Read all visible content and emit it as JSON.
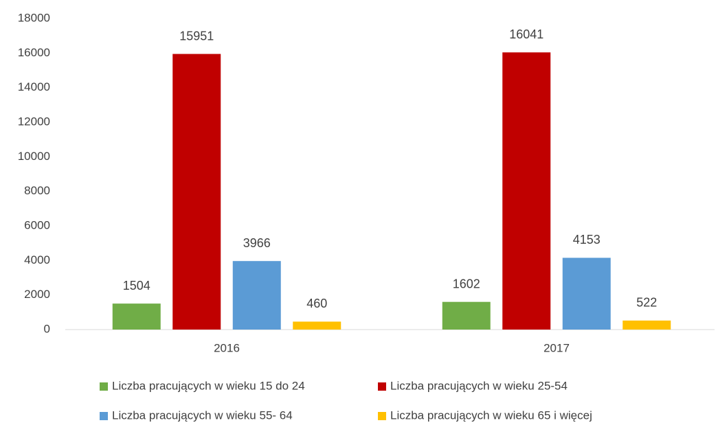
{
  "chart_data": {
    "type": "bar",
    "categories": [
      "2016",
      "2017"
    ],
    "series": [
      {
        "name": "Liczba pracujących w wieku 15 do 24",
        "color": "#70ad47",
        "values": [
          1504,
          1602
        ]
      },
      {
        "name": "Liczba pracujących w wieku 25-54",
        "color": "#c00000",
        "values": [
          15951,
          16041
        ]
      },
      {
        "name": "Liczba pracujących w wieku 55- 64",
        "color": "#5b9bd5",
        "values": [
          3966,
          4153
        ]
      },
      {
        "name": "Liczba pracujących w wieku 65 i więcej",
        "color": "#ffc000",
        "values": [
          460,
          522
        ]
      }
    ],
    "ylim": [
      0,
      18000
    ],
    "yticks": [
      0,
      2000,
      4000,
      6000,
      8000,
      10000,
      12000,
      14000,
      16000,
      18000
    ],
    "grid": false,
    "legend": "bottom"
  }
}
